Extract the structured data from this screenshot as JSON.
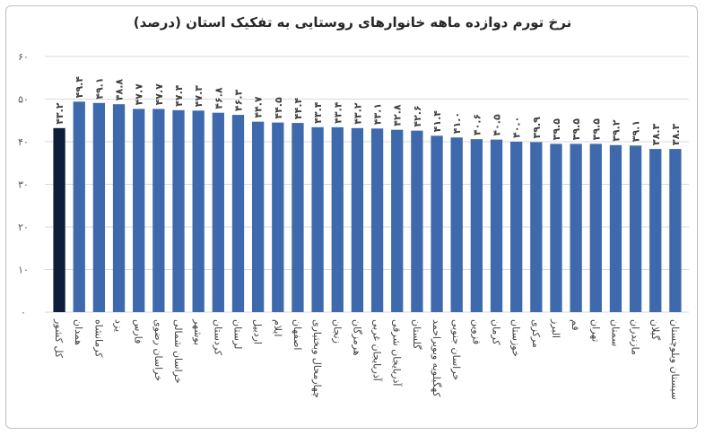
{
  "chart_data": {
    "type": "bar",
    "title": "نرخ تورم دوازده ماهه خانوارهای روستایی به تفکیک استان (درصد)",
    "ylim": [
      0,
      60
    ],
    "yticks": [
      0,
      10,
      20,
      30,
      40,
      50,
      60
    ],
    "ytick_labels": [
      "۰",
      "۱۰",
      "۲۰",
      "۳۰",
      "۴۰",
      "۵۰",
      "۶۰"
    ],
    "grid": true,
    "categories": [
      "کل کشور",
      "همدان",
      "کرمانشاه",
      "یزد",
      "فارس",
      "خراسان رضوی",
      "خراسان شمالی",
      "بوشهر",
      "کردستان",
      "لرستان",
      "اردبیل",
      "ایلام",
      "اصفهان",
      "چهارمحال وبختیاری",
      "زنجان",
      "هرمزگان",
      "آذربایجان غربی",
      "آذربایجان شرقی",
      "گلستان",
      "کهگیلویه وبویراحمد",
      "خراسان جنوبی",
      "قزوین",
      "کرمان",
      "خوزستان",
      "مرکزی",
      "البرز",
      "قم",
      "تهران",
      "سمنان",
      "مازندران",
      "گیلان",
      "سیستان وبلوچستان"
    ],
    "values": [
      43.2,
      49.4,
      49.1,
      48.8,
      47.7,
      47.7,
      47.4,
      47.3,
      46.8,
      46.3,
      44.7,
      44.5,
      44.4,
      43.4,
      43.4,
      43.2,
      43.1,
      42.8,
      42.6,
      41.4,
      41.0,
      40.6,
      40.5,
      40.0,
      39.9,
      39.5,
      39.5,
      39.5,
      39.2,
      39.1,
      38.3,
      38.3
    ],
    "data_labels": [
      "۴۳.۲",
      "۴۹.۴",
      "۴۹.۱",
      "۴۸.۸",
      "۴۷.۷",
      "۴۷.۷",
      "۴۷.۴",
      "۴۷.۳",
      "۴۶.۸",
      "۴۶.۳",
      "۴۴.۷",
      "۴۴.۵",
      "۴۴.۴",
      "۴۳.۴",
      "۴۳.۴",
      "۴۳.۲",
      "۴۳.۱",
      "۴۲.۸",
      "۴۲.۶",
      "۴۱.۴",
      "۴۱.۰",
      "۴۰.۶",
      "۴۰.۵",
      "۴۰.۰",
      "۳۹.۹",
      "۳۹.۵",
      "۳۹.۵",
      "۳۹.۵",
      "۳۹.۲",
      "۳۹.۱",
      "۳۸.۳",
      "۳۸.۳"
    ],
    "colors": {
      "highlight": "#0e1e3a",
      "bar": "#3e69ad",
      "grid": "#d9d9d9",
      "border": "#bfbfbf"
    }
  }
}
